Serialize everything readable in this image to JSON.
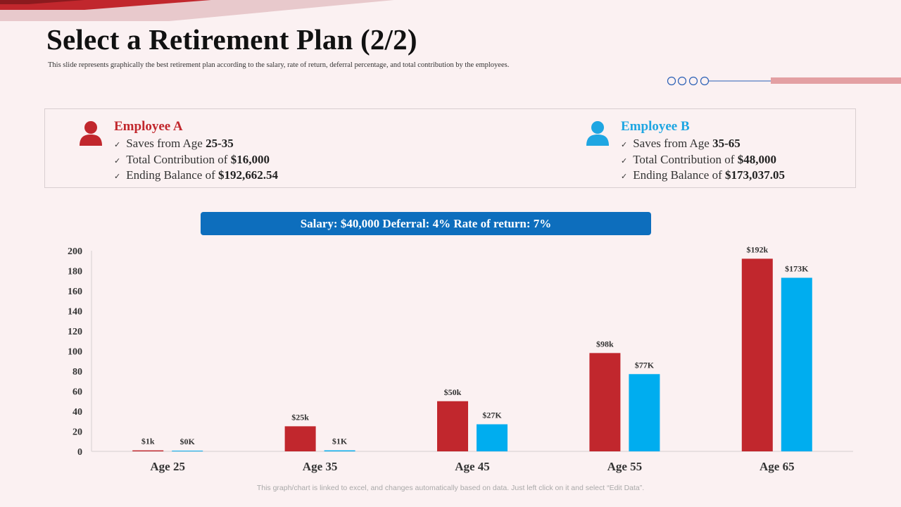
{
  "title": "Select a Retirement Plan (2/2)",
  "subtitle": "This slide represents graphically  the best retirement plan according  to the salary, rate of return, deferral percentage,  and total contribution by the employees.",
  "colors": {
    "employee_a": "#c1272d",
    "employee_b": "#00adef",
    "banner": "#0d6ebd"
  },
  "employees": [
    {
      "name": "Employee A",
      "icon": "person-icon",
      "rows": [
        {
          "text": "Saves from Age ",
          "value": "25-35"
        },
        {
          "text": "Total Contribution of ",
          "value": "$16,000"
        },
        {
          "text": "Ending Balance of  ",
          "value": "$192,662.54"
        }
      ]
    },
    {
      "name": "Employee B",
      "icon": "person-icon",
      "rows": [
        {
          "text": "Saves from Age ",
          "value": "35-65"
        },
        {
          "text": "Total Contribution of ",
          "value": "$48,000"
        },
        {
          "text": "Ending Balance of  ",
          "value": "$173,037.05"
        }
      ]
    }
  ],
  "check_glyph": "✓",
  "banner": "Salary: $40,000 Deferral: 4% Rate of return: 7%",
  "footnote": "This graph/chart is linked to excel,  and changes automatically based on data. Just left click on it and select “Edit Data”.",
  "chart_data": {
    "type": "bar",
    "title": "",
    "xlabel": "",
    "ylabel": "",
    "categories": [
      "Age 25",
      "Age 35",
      "Age 45",
      "Age 55",
      "Age 65"
    ],
    "series": [
      {
        "name": "Employee A",
        "color": "#c1272d",
        "values": [
          1,
          25,
          50,
          98,
          192
        ],
        "labels": [
          "$1k",
          "$25k",
          "$50k",
          "$98k",
          "$192k"
        ]
      },
      {
        "name": "Employee B",
        "color": "#00adef",
        "values": [
          0,
          1,
          27,
          77,
          173
        ],
        "labels": [
          "$0K",
          "$1K",
          "$27K",
          "$77K",
          "$173K"
        ]
      }
    ],
    "ylim": [
      0,
      200
    ],
    "yticks": [
      0,
      20,
      40,
      60,
      80,
      100,
      120,
      140,
      160,
      180,
      200
    ],
    "grid": false,
    "legend": "none"
  }
}
